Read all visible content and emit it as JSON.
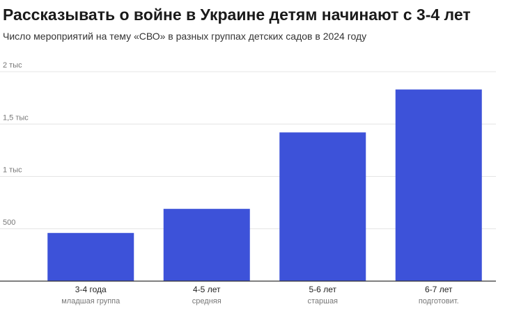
{
  "chart_data": {
    "type": "bar",
    "title": "Рассказывать о войне в Украине детям начинают с 3-4 лет",
    "subtitle": "Число мероприятий на тему «СВО» в разных группах детских садов в 2024 году",
    "categories": [
      "3-4 года",
      "4-5 лет",
      "5-6 лет",
      "6-7 лет"
    ],
    "category_sublabels": [
      "младшая группа",
      "средняя",
      "старшая",
      "подготовит."
    ],
    "values": [
      460,
      690,
      1420,
      1830
    ],
    "ylim": [
      0,
      2000
    ],
    "yticks": [
      {
        "value": 500,
        "label": "500"
      },
      {
        "value": 1000,
        "label": "1 тыс"
      },
      {
        "value": 1500,
        "label": "1,5 тыс"
      },
      {
        "value": 2000,
        "label": "2 тыс"
      }
    ],
    "grid": true,
    "bar_color": "#3d52d9"
  }
}
